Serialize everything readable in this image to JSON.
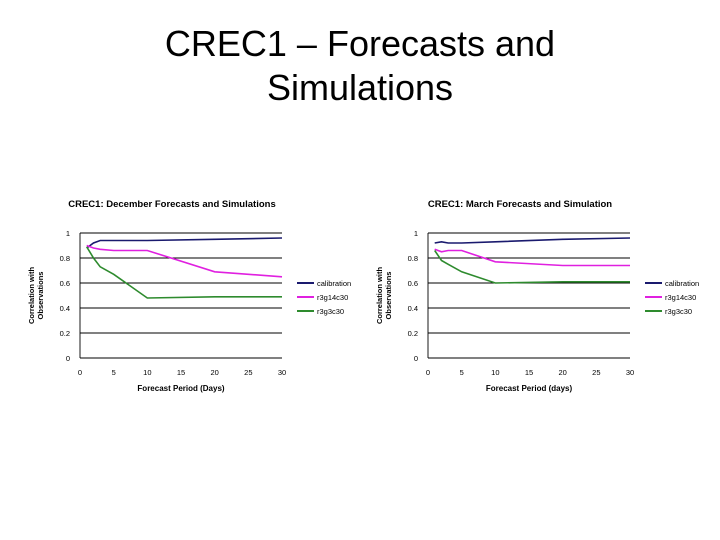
{
  "slide": {
    "title_line1": "CREC1 – Forecasts and",
    "title_line2": "Simulations"
  },
  "colors": {
    "calibration": "#1a1a6e",
    "r3g14c30": "#e020e0",
    "r3g3c30": "#2e8b2e",
    "grid": "#000000"
  },
  "chart_data": [
    {
      "type": "line",
      "title": "CREC1:  December Forecasts and Simulations",
      "xlabel": "Forecast Period (Days)",
      "ylabel": [
        "Correlation with",
        "Observations"
      ],
      "xlim": [
        0,
        30
      ],
      "ylim": [
        0,
        1
      ],
      "xticks": [
        "0",
        "5",
        "10",
        "15",
        "20",
        "25",
        "30"
      ],
      "yticks": [
        "0",
        "0.2",
        "0.4",
        "0.6",
        "0.8",
        "1"
      ],
      "legend_position": "right",
      "series": [
        {
          "name": "calibration",
          "color": "#1a1a6e",
          "points": [
            [
              1,
              0.88
            ],
            [
              2,
              0.92
            ],
            [
              3,
              0.94
            ],
            [
              5,
              0.94
            ],
            [
              10,
              0.94
            ],
            [
              20,
              0.95
            ],
            [
              30,
              0.96
            ]
          ]
        },
        {
          "name": "r3g14c30",
          "color": "#e020e0",
          "points": [
            [
              1,
              0.9
            ],
            [
              2,
              0.88
            ],
            [
              3,
              0.87
            ],
            [
              5,
              0.86
            ],
            [
              10,
              0.86
            ],
            [
              20,
              0.69
            ],
            [
              30,
              0.65
            ]
          ]
        },
        {
          "name": "r3g3c30",
          "color": "#2e8b2e",
          "points": [
            [
              1,
              0.89
            ],
            [
              2,
              0.8
            ],
            [
              3,
              0.73
            ],
            [
              5,
              0.67
            ],
            [
              10,
              0.48
            ],
            [
              20,
              0.49
            ],
            [
              30,
              0.49
            ]
          ]
        }
      ]
    },
    {
      "type": "line",
      "title": "CREC1:  March Forecasts and Simulation",
      "xlabel": "Forecast Period (days)",
      "ylabel": [
        "Correlation with",
        "Observations"
      ],
      "xlim": [
        0,
        30
      ],
      "ylim": [
        0,
        1
      ],
      "xticks": [
        "0",
        "5",
        "10",
        "15",
        "20",
        "25",
        "30"
      ],
      "yticks": [
        "0",
        "0.2",
        "0.4",
        "0.6",
        "0.8",
        "1"
      ],
      "legend_position": "right",
      "series": [
        {
          "name": "calibration",
          "color": "#1a1a6e",
          "points": [
            [
              1,
              0.92
            ],
            [
              2,
              0.93
            ],
            [
              3,
              0.92
            ],
            [
              5,
              0.92
            ],
            [
              10,
              0.93
            ],
            [
              20,
              0.95
            ],
            [
              30,
              0.96
            ]
          ]
        },
        {
          "name": "r3g14c30",
          "color": "#e020e0",
          "points": [
            [
              1,
              0.87
            ],
            [
              2,
              0.85
            ],
            [
              3,
              0.86
            ],
            [
              5,
              0.86
            ],
            [
              10,
              0.77
            ],
            [
              20,
              0.74
            ],
            [
              30,
              0.74
            ]
          ]
        },
        {
          "name": "r3g3c30",
          "color": "#2e8b2e",
          "points": [
            [
              1,
              0.86
            ],
            [
              2,
              0.78
            ],
            [
              3,
              0.75
            ],
            [
              5,
              0.69
            ],
            [
              10,
              0.6
            ],
            [
              20,
              0.61
            ],
            [
              30,
              0.61
            ]
          ]
        }
      ]
    }
  ]
}
